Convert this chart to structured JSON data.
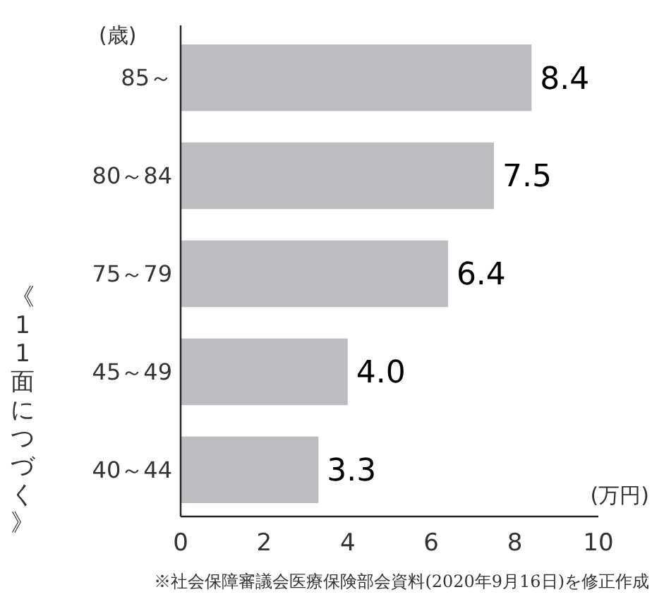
{
  "chart_data": {
    "type": "bar",
    "orientation": "horizontal",
    "ylabel": "(歳)",
    "xlabel": "(万円)",
    "categories": [
      "85～",
      "80～84",
      "75～79",
      "45～49",
      "40～44"
    ],
    "values": [
      8.4,
      7.5,
      6.4,
      4.0,
      3.3
    ],
    "value_labels": [
      "8.4",
      "7.5",
      "6.4",
      "4.0",
      "3.3"
    ],
    "color": "#bcbdc0",
    "xlim": [
      0,
      10
    ],
    "xticks": [
      0,
      2,
      4,
      6,
      8,
      10
    ],
    "annotations": [
      "※社会保障審議会医療保険部会資料(2020年9月16日)を修正作成",
      "《11面につづく》"
    ]
  }
}
